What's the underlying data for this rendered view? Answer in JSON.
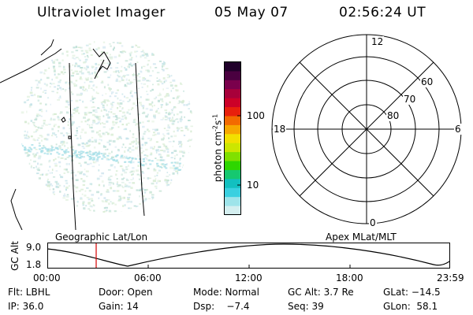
{
  "header": {
    "title": "Ultraviolet Imager",
    "date": "05 May 07",
    "time": "02:56:24 UT"
  },
  "colorbar": {
    "label": "photon cm",
    "label_sup1": "-2",
    "label_mid": "s",
    "label_sup2": "-1",
    "ticks": [
      "100",
      "10"
    ],
    "colors": [
      "#20002a",
      "#4a0040",
      "#7a004c",
      "#a8003a",
      "#cc0028",
      "#e8200c",
      "#f36a00",
      "#f7a800",
      "#f2e000",
      "#cce600",
      "#80e000",
      "#2ed600",
      "#16c870",
      "#12c0c0",
      "#3ad0e0",
      "#9ee4ea",
      "#d4eff0"
    ]
  },
  "polar_plot": {
    "mlt_labels": [
      "12",
      "18",
      "6",
      "0"
    ],
    "lat_labels": [
      "60",
      "70",
      "80"
    ]
  },
  "altitude_plot": {
    "left_title": "Geographic Lat/Lon",
    "right_title": "Apex MLat/MLT",
    "ylabel": "GC Alt",
    "y_ticks": [
      "9.0",
      "1.8"
    ],
    "x_ticks": [
      "00:00",
      "06:00",
      "12:00",
      "18:00",
      "23:59"
    ]
  },
  "status": {
    "flt": "Flt: LBHL",
    "door": "Door: Open",
    "mode": "Mode: Normal",
    "gc_alt": "GC Alt: 3.7 Re",
    "glat": "GLat: −14.5",
    "ip": "IP: 36.0",
    "gain": "Gain: 14",
    "dsp": "Dsp:    −7.4",
    "seq": "Seq: 39",
    "glon": "GLon:  58.1"
  }
}
